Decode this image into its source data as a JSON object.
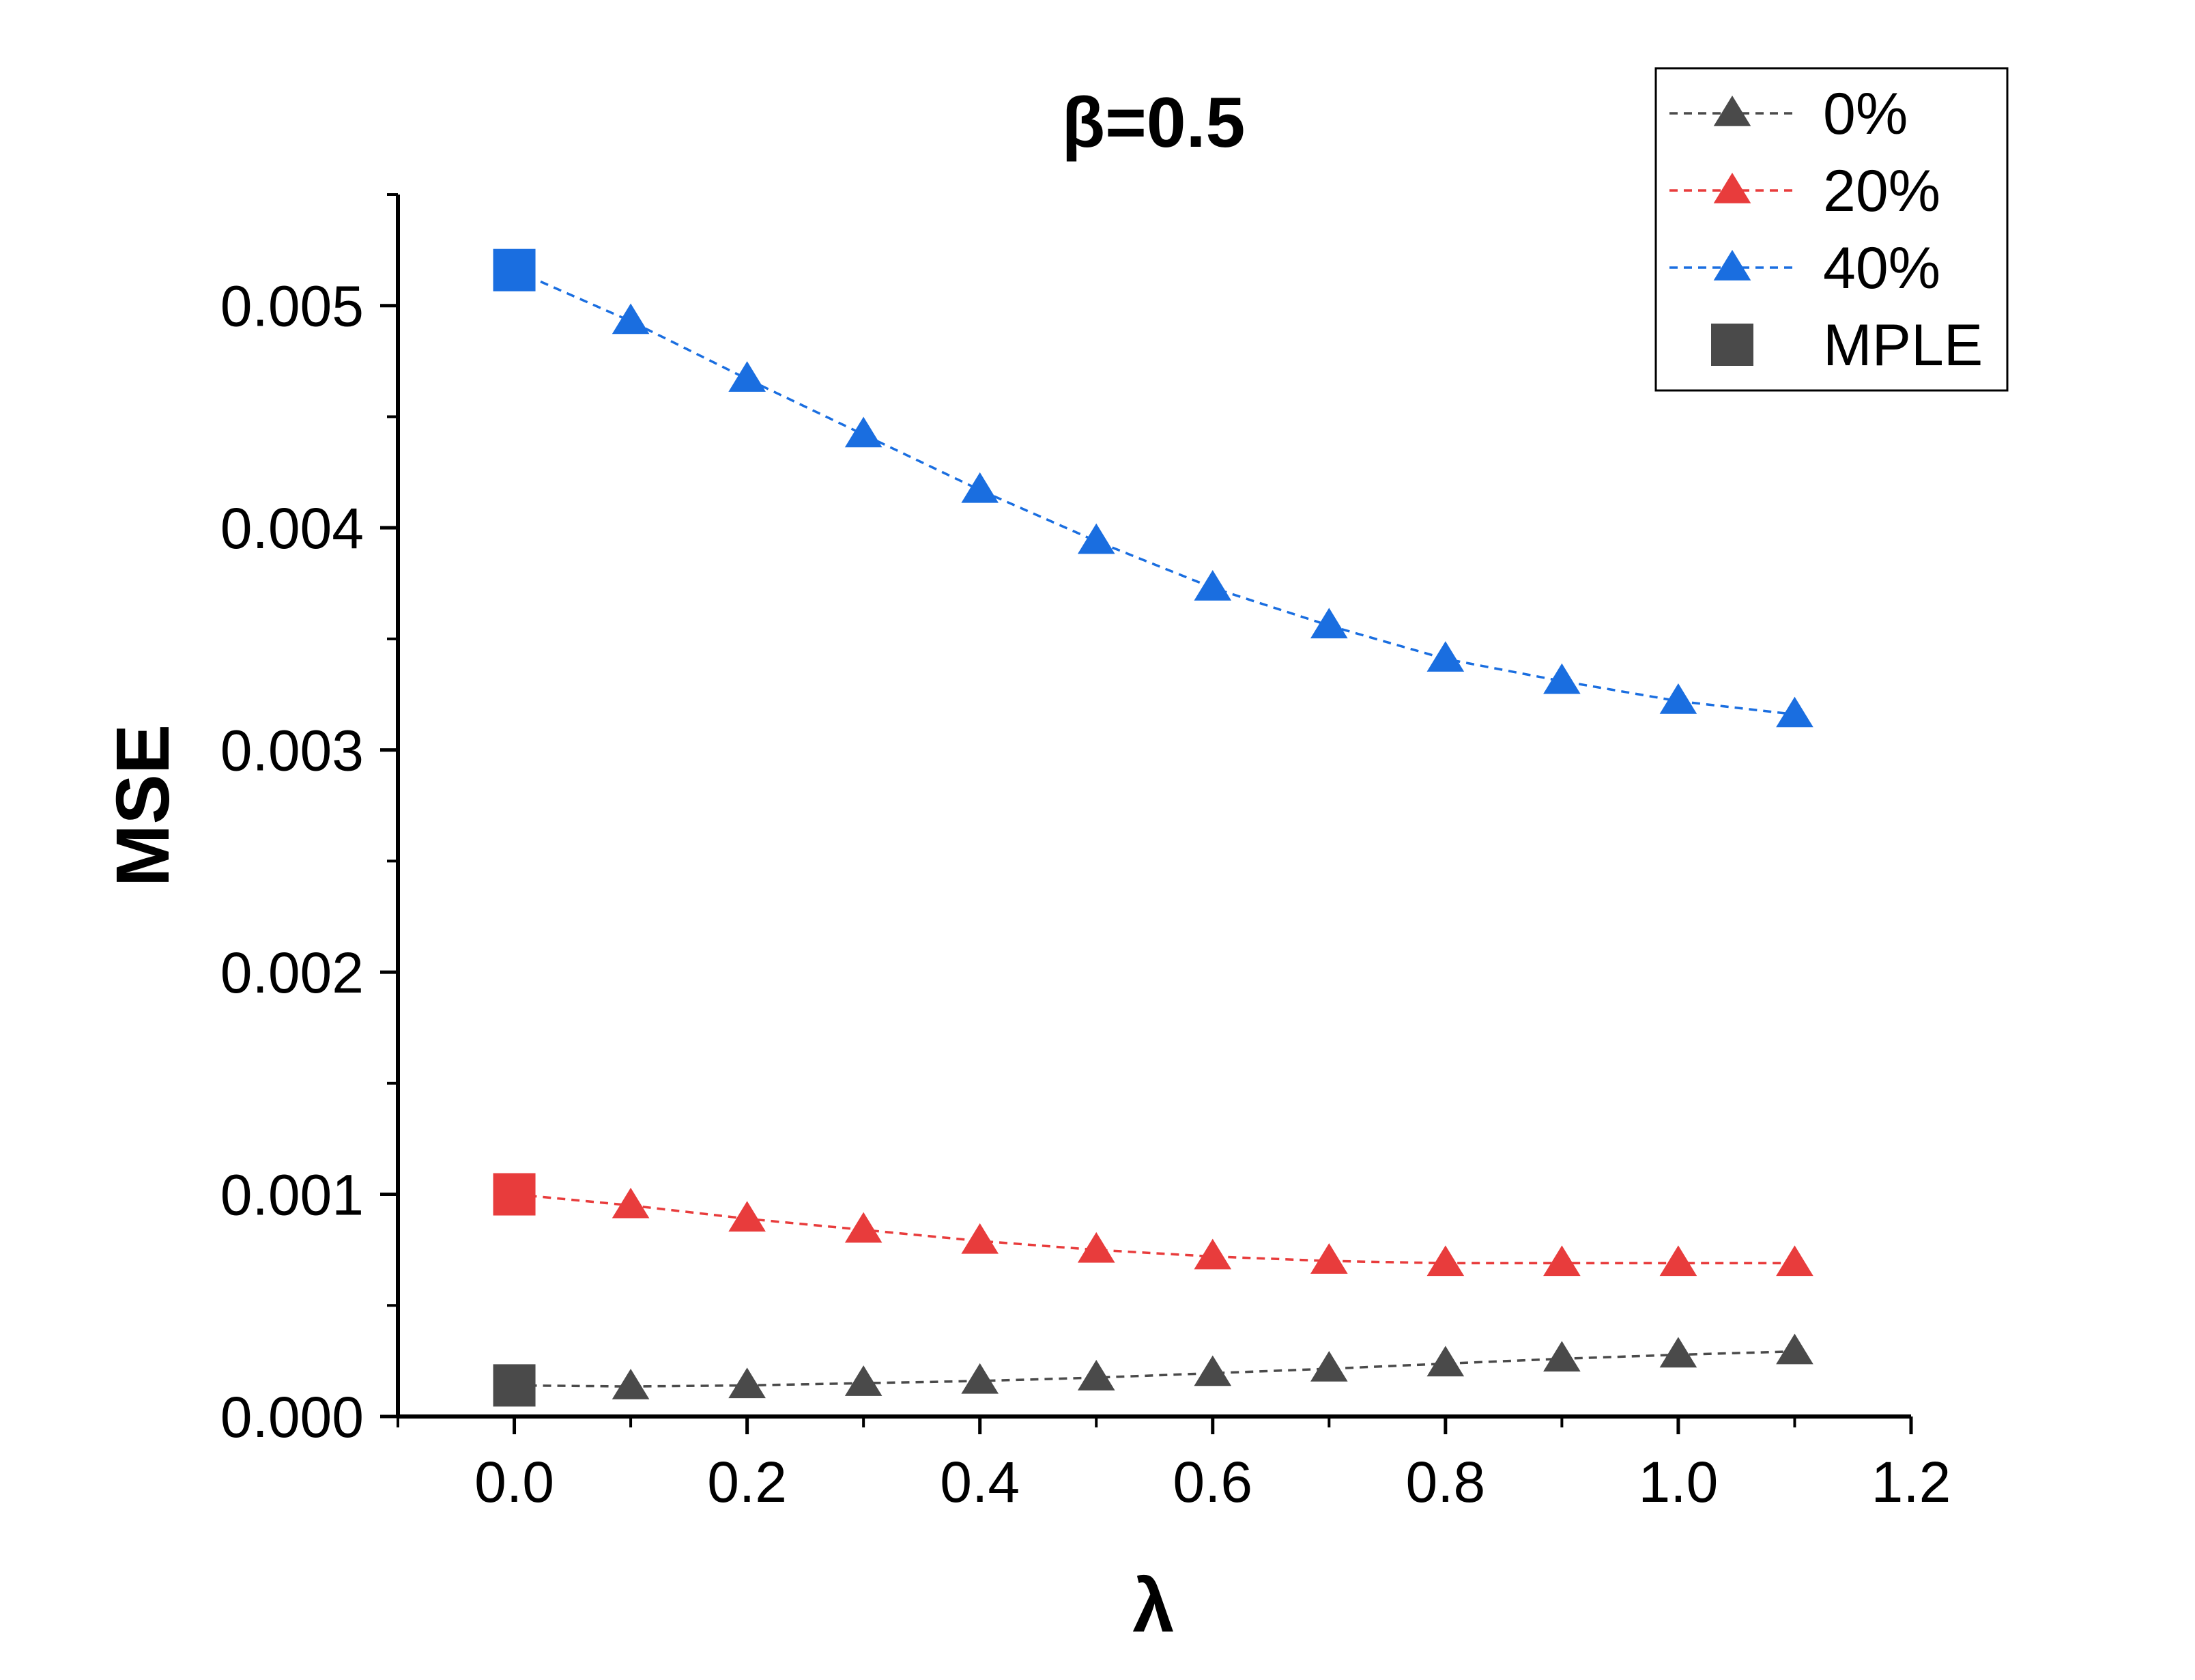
{
  "chart_data": {
    "type": "line",
    "title": "β=0.5",
    "xlabel": "λ",
    "ylabel": "MSE",
    "xlim": [
      -0.1,
      1.2
    ],
    "ylim": [
      0,
      0.0055
    ],
    "xticks": [
      "0.0",
      "0.2",
      "0.4",
      "0.6",
      "0.8",
      "1.0",
      "1.2"
    ],
    "yticks": [
      "0.000",
      "0.001",
      "0.002",
      "0.003",
      "0.004",
      "0.005"
    ],
    "x": [
      0.0,
      0.1,
      0.2,
      0.3,
      0.4,
      0.5,
      0.6,
      0.7,
      0.8,
      0.9,
      1.0,
      1.1
    ],
    "series": [
      {
        "name": "0%",
        "color": "#4a4a4a",
        "marker": "triangle",
        "linestyle": "dashed",
        "values": [
          0.00014,
          0.000135,
          0.00014,
          0.00015,
          0.00016,
          0.000175,
          0.000195,
          0.000215,
          0.000238,
          0.00026,
          0.000278,
          0.000293
        ]
      },
      {
        "name": "20%",
        "color": "#e83c3c",
        "marker": "triangle",
        "linestyle": "dashed",
        "values": [
          0.001,
          0.00095,
          0.00089,
          0.00084,
          0.00079,
          0.00075,
          0.00072,
          0.0007,
          0.00069,
          0.00069,
          0.00069,
          0.00069
        ]
      },
      {
        "name": "40%",
        "color": "#1a6ee0",
        "marker": "triangle",
        "linestyle": "dashed",
        "values": [
          0.00516,
          0.00493,
          0.00467,
          0.00442,
          0.00417,
          0.00394,
          0.00373,
          0.00356,
          0.00341,
          0.00331,
          0.00322,
          0.00316
        ]
      },
      {
        "name": "MPLE",
        "marker": "square",
        "linestyle": "none",
        "points": [
          {
            "x": 0.0,
            "y": 0.00014,
            "color": "#4a4a4a"
          },
          {
            "x": 0.0,
            "y": 0.001,
            "color": "#e83c3c"
          },
          {
            "x": 0.0,
            "y": 0.00516,
            "color": "#1a6ee0"
          }
        ],
        "legend_color": "#4a4a4a"
      }
    ],
    "legend_placement": "top-right",
    "grid": false
  }
}
